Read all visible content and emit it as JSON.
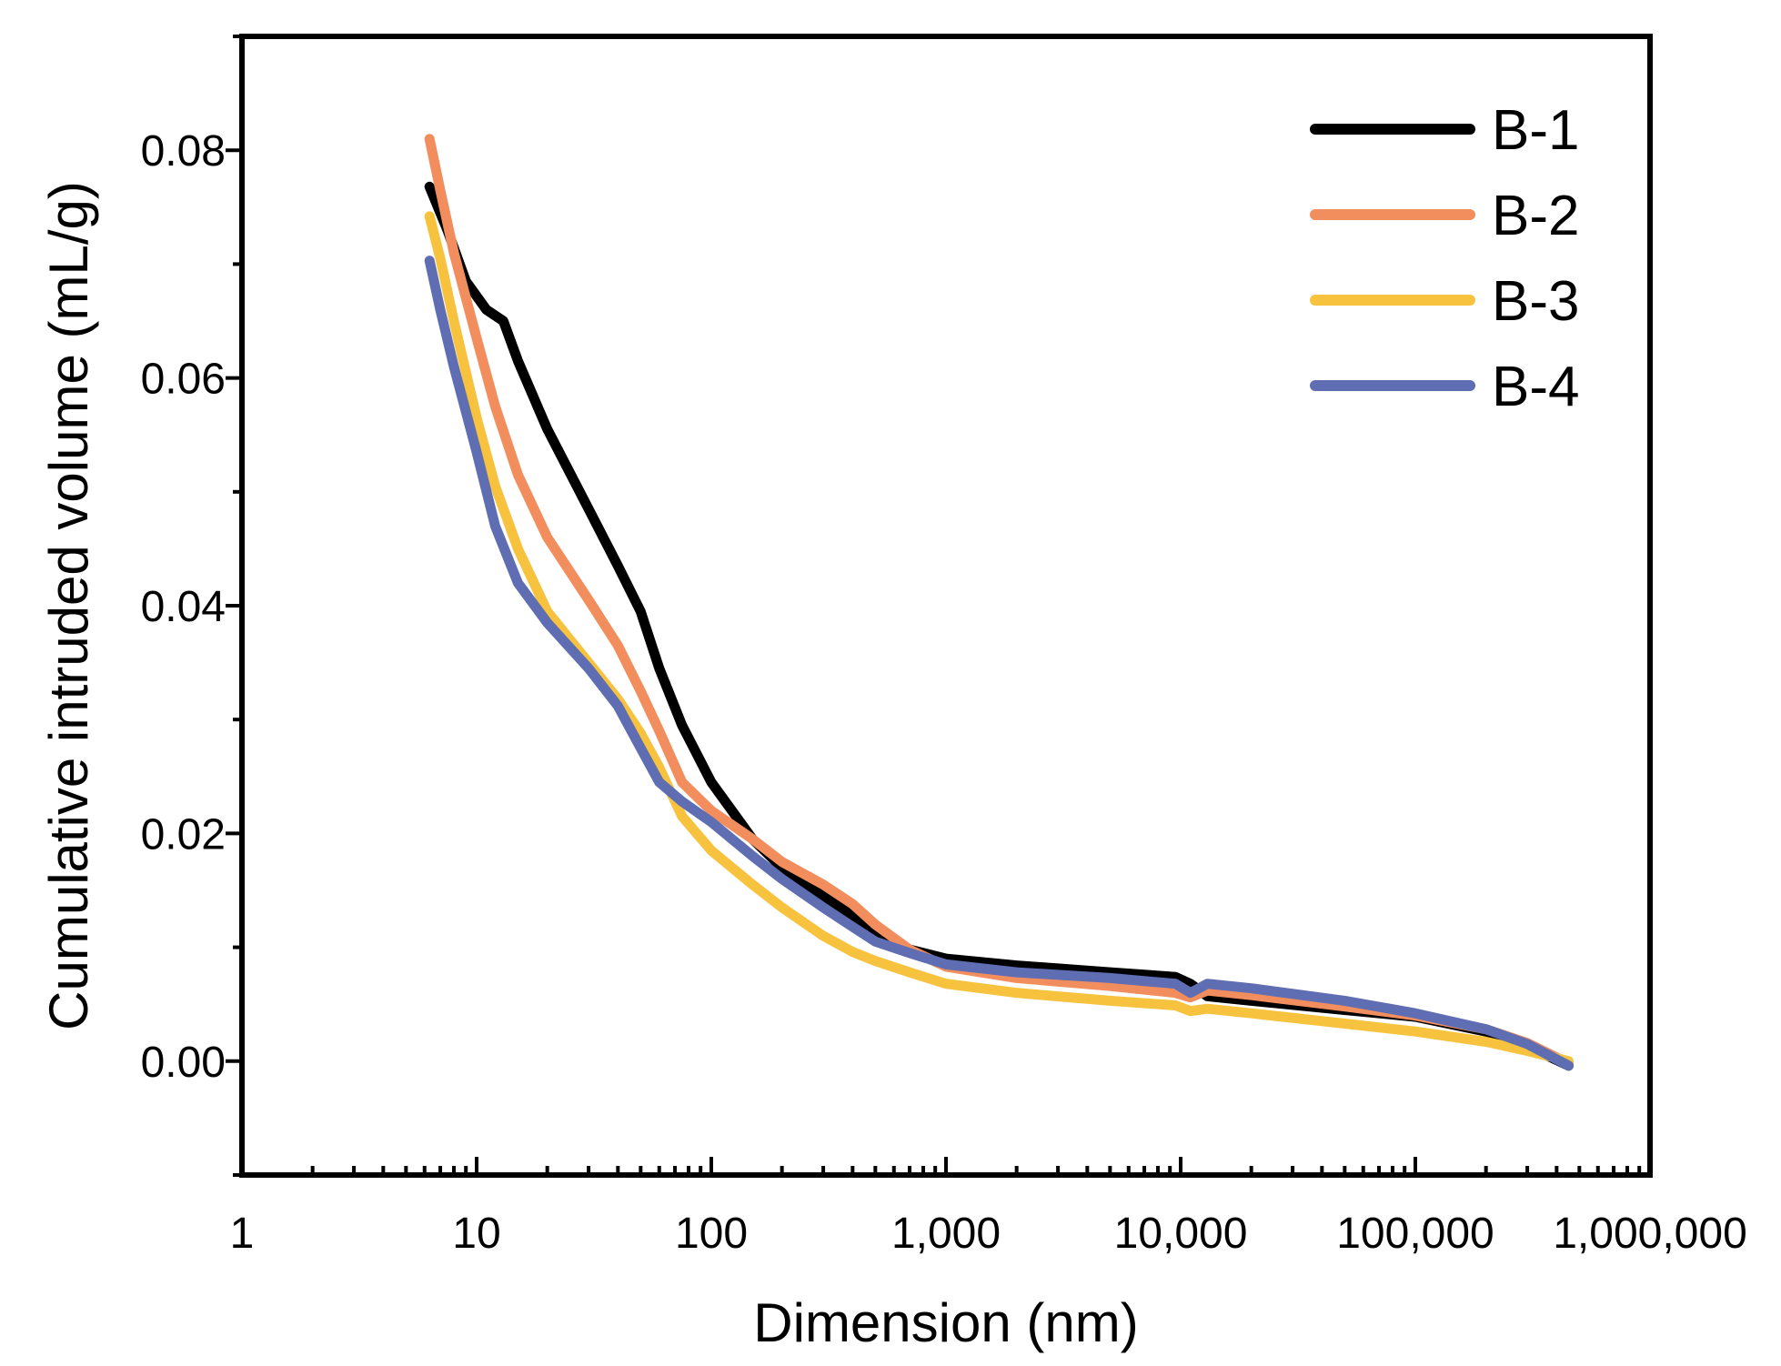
{
  "chart_data": {
    "type": "line",
    "title": "",
    "xlabel": "Dimension (nm)",
    "ylabel": "Cumulative intruded volume (mL/g)",
    "xscale": "log",
    "xlim": [
      1,
      1000000
    ],
    "ylim": [
      -0.01,
      0.09
    ],
    "xticks": [
      1,
      10,
      100,
      1000,
      10000,
      100000,
      1000000
    ],
    "xtick_labels": [
      "1",
      "10",
      "100",
      "1,000",
      "10,000",
      "100,000",
      "1,000,000"
    ],
    "yticks": [
      0.0,
      0.02,
      0.04,
      0.06,
      0.08
    ],
    "ytick_labels": [
      "0.00",
      "0.02",
      "0.04",
      "0.06",
      "0.08"
    ],
    "grid": false,
    "legend_position": "top-right",
    "series": [
      {
        "name": "B-1",
        "color": "#000000",
        "points": [
          [
            6.3,
            0.0768
          ],
          [
            7.5,
            0.073
          ],
          [
            9,
            0.0685
          ],
          [
            11,
            0.066
          ],
          [
            13,
            0.065
          ],
          [
            15,
            0.0615
          ],
          [
            20,
            0.0555
          ],
          [
            30,
            0.0485
          ],
          [
            40,
            0.0435
          ],
          [
            50,
            0.0395
          ],
          [
            60,
            0.0345
          ],
          [
            75,
            0.0295
          ],
          [
            100,
            0.0245
          ],
          [
            150,
            0.0195
          ],
          [
            200,
            0.017
          ],
          [
            300,
            0.0145
          ],
          [
            500,
            0.0115
          ],
          [
            700,
            0.0098
          ],
          [
            1000,
            0.009
          ],
          [
            2000,
            0.0084
          ],
          [
            5000,
            0.0078
          ],
          [
            9500,
            0.0074
          ],
          [
            11000,
            0.0068
          ],
          [
            13000,
            0.0057
          ],
          [
            20000,
            0.0053
          ],
          [
            50000,
            0.0045
          ],
          [
            100000,
            0.0039
          ],
          [
            200000,
            0.0026
          ],
          [
            300000,
            0.0013
          ],
          [
            450000,
            -0.0004
          ]
        ]
      },
      {
        "name": "B-2",
        "color": "#F28E5E",
        "points": [
          [
            6.3,
            0.081
          ],
          [
            7,
            0.0765
          ],
          [
            8,
            0.071
          ],
          [
            10,
            0.0635
          ],
          [
            12,
            0.0575
          ],
          [
            15,
            0.0515
          ],
          [
            20,
            0.046
          ],
          [
            30,
            0.0405
          ],
          [
            40,
            0.0365
          ],
          [
            50,
            0.0325
          ],
          [
            60,
            0.029
          ],
          [
            75,
            0.0245
          ],
          [
            100,
            0.022
          ],
          [
            150,
            0.0195
          ],
          [
            200,
            0.0175
          ],
          [
            300,
            0.0155
          ],
          [
            400,
            0.0138
          ],
          [
            500,
            0.012
          ],
          [
            700,
            0.0098
          ],
          [
            1000,
            0.0083
          ],
          [
            2000,
            0.0073
          ],
          [
            5000,
            0.0066
          ],
          [
            9500,
            0.006
          ],
          [
            11000,
            0.0056
          ],
          [
            13000,
            0.0062
          ],
          [
            20000,
            0.0058
          ],
          [
            50000,
            0.0048
          ],
          [
            100000,
            0.004
          ],
          [
            200000,
            0.0028
          ],
          [
            300000,
            0.0016
          ],
          [
            450000,
            -0.0002
          ]
        ]
      },
      {
        "name": "B-3",
        "color": "#F7C23E",
        "points": [
          [
            6.3,
            0.0742
          ],
          [
            7,
            0.0705
          ],
          [
            8,
            0.065
          ],
          [
            10,
            0.0565
          ],
          [
            12,
            0.0505
          ],
          [
            15,
            0.045
          ],
          [
            20,
            0.0395
          ],
          [
            30,
            0.035
          ],
          [
            40,
            0.0318
          ],
          [
            50,
            0.0288
          ],
          [
            60,
            0.0258
          ],
          [
            75,
            0.0215
          ],
          [
            100,
            0.0185
          ],
          [
            150,
            0.0155
          ],
          [
            200,
            0.0135
          ],
          [
            300,
            0.011
          ],
          [
            400,
            0.0096
          ],
          [
            500,
            0.0088
          ],
          [
            700,
            0.0078
          ],
          [
            1000,
            0.0068
          ],
          [
            2000,
            0.006
          ],
          [
            5000,
            0.0053
          ],
          [
            9500,
            0.0049
          ],
          [
            11000,
            0.0044
          ],
          [
            13000,
            0.0046
          ],
          [
            20000,
            0.0042
          ],
          [
            50000,
            0.0033
          ],
          [
            100000,
            0.0026
          ],
          [
            200000,
            0.0017
          ],
          [
            300000,
            0.0009
          ],
          [
            450000,
            0.0
          ]
        ]
      },
      {
        "name": "B-4",
        "color": "#5F6DB3",
        "points": [
          [
            6.3,
            0.0703
          ],
          [
            7,
            0.066
          ],
          [
            8,
            0.061
          ],
          [
            10,
            0.0535
          ],
          [
            12,
            0.047
          ],
          [
            15,
            0.042
          ],
          [
            20,
            0.0385
          ],
          [
            30,
            0.0345
          ],
          [
            40,
            0.0312
          ],
          [
            50,
            0.0275
          ],
          [
            60,
            0.0245
          ],
          [
            75,
            0.0228
          ],
          [
            100,
            0.021
          ],
          [
            150,
            0.018
          ],
          [
            200,
            0.016
          ],
          [
            300,
            0.0135
          ],
          [
            400,
            0.0118
          ],
          [
            500,
            0.0105
          ],
          [
            700,
            0.0095
          ],
          [
            1000,
            0.0085
          ],
          [
            2000,
            0.0078
          ],
          [
            5000,
            0.0073
          ],
          [
            9500,
            0.0068
          ],
          [
            11000,
            0.006
          ],
          [
            13000,
            0.0068
          ],
          [
            20000,
            0.0064
          ],
          [
            50000,
            0.0053
          ],
          [
            100000,
            0.0042
          ],
          [
            200000,
            0.0028
          ],
          [
            300000,
            0.0015
          ],
          [
            450000,
            -0.0004
          ]
        ]
      }
    ]
  }
}
